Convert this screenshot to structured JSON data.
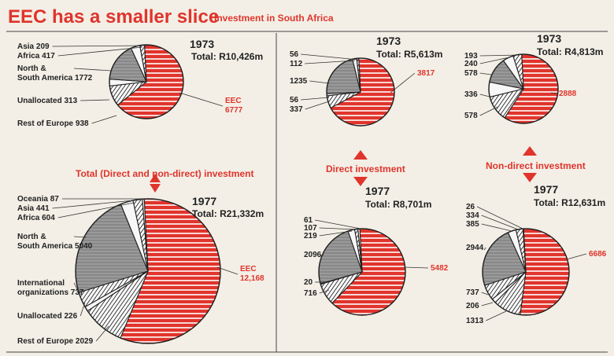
{
  "header": {
    "title": "EEC has a smaller slice",
    "subtitle": "Investment in South Africa"
  },
  "middle_labels": {
    "total": "Total (Direct and non-direct) investment",
    "direct": "Direct investment",
    "nondirect": "Non-direct investment"
  },
  "colors": {
    "eec": "#e0342c",
    "grey": "#9a9a9a",
    "white": "#f7f7f7",
    "ink": "#222222"
  },
  "chart_data": [
    {
      "id": "total-1973",
      "type": "pie",
      "year": "1973",
      "total": "Total: R10,426m",
      "slices": [
        {
          "label": "EEC",
          "value": 6777,
          "value_label": "6777",
          "fill": "red"
        },
        {
          "label": "Rest of Europe",
          "value": 938,
          "value_label": "938",
          "fill": "hatch"
        },
        {
          "label": "Unallocated",
          "value": 313,
          "value_label": "313",
          "fill": "white"
        },
        {
          "label": "North & South America",
          "value": 1772,
          "value_label": "1772",
          "fill": "grey"
        },
        {
          "label": "Africa",
          "value": 417,
          "value_label": "417",
          "fill": "white"
        },
        {
          "label": "Asia",
          "value": 209,
          "value_label": "209",
          "fill": "hatch"
        }
      ]
    },
    {
      "id": "total-1977",
      "type": "pie",
      "year": "1977",
      "total": "Total: R21,332m",
      "slices": [
        {
          "label": "EEC",
          "value": 12168,
          "value_label": "12,168",
          "fill": "red"
        },
        {
          "label": "Rest of Europe",
          "value": 2029,
          "value_label": "2029",
          "fill": "hatch"
        },
        {
          "label": "Unallocated",
          "value": 226,
          "value_label": "226",
          "fill": "white"
        },
        {
          "label": "International organizations",
          "value": 737,
          "value_label": "737",
          "fill": "hatch"
        },
        {
          "label": "North & South America",
          "value": 5040,
          "value_label": "5040",
          "fill": "grey"
        },
        {
          "label": "Africa",
          "value": 604,
          "value_label": "604",
          "fill": "white"
        },
        {
          "label": "Asia",
          "value": 441,
          "value_label": "441",
          "fill": "hatch"
        },
        {
          "label": "Oceania",
          "value": 87,
          "value_label": "87",
          "fill": "white"
        }
      ]
    },
    {
      "id": "direct-1973",
      "type": "pie",
      "year": "1973",
      "total": "Total: R5,613m",
      "slices": [
        {
          "label": "",
          "value": 3817,
          "value_label": "3817",
          "fill": "red"
        },
        {
          "label": "",
          "value": 337,
          "value_label": "337",
          "fill": "hatch"
        },
        {
          "label": "",
          "value": 56,
          "value_label": "56",
          "fill": "white"
        },
        {
          "label": "",
          "value": 1235,
          "value_label": "1235",
          "fill": "grey"
        },
        {
          "label": "",
          "value": 112,
          "value_label": "112",
          "fill": "white"
        },
        {
          "label": "",
          "value": 56,
          "value_label": "56",
          "fill": "hatch"
        }
      ]
    },
    {
      "id": "direct-1977",
      "type": "pie",
      "year": "1977",
      "total": "Total: R8,701m",
      "slices": [
        {
          "label": "",
          "value": 5482,
          "value_label": "5482",
          "fill": "red"
        },
        {
          "label": "",
          "value": 716,
          "value_label": "716",
          "fill": "hatch"
        },
        {
          "label": "",
          "value": 20,
          "value_label": "20",
          "fill": "white"
        },
        {
          "label": "",
          "value": 2096,
          "value_label": "2096",
          "fill": "grey"
        },
        {
          "label": "",
          "value": 219,
          "value_label": "219",
          "fill": "white"
        },
        {
          "label": "",
          "value": 107,
          "value_label": "107",
          "fill": "hatch"
        },
        {
          "label": "",
          "value": 61,
          "value_label": "61",
          "fill": "white"
        }
      ]
    },
    {
      "id": "nondirect-1973",
      "type": "pie",
      "year": "1973",
      "total": "Total: R4,813m",
      "slices": [
        {
          "label": "",
          "value": 2888,
          "value_label": "2888",
          "fill": "red"
        },
        {
          "label": "",
          "value": 578,
          "value_label": "578",
          "fill": "hatch"
        },
        {
          "label": "",
          "value": 336,
          "value_label": "336",
          "fill": "white"
        },
        {
          "label": "",
          "value": 578,
          "value_label": "578",
          "fill": "grey"
        },
        {
          "label": "",
          "value": 240,
          "value_label": "240",
          "fill": "white"
        },
        {
          "label": "",
          "value": 193,
          "value_label": "193",
          "fill": "hatch"
        }
      ]
    },
    {
      "id": "nondirect-1977",
      "type": "pie",
      "year": "1977",
      "total": "Total: R12,631m",
      "slices": [
        {
          "label": "",
          "value": 6686,
          "value_label": "6686",
          "fill": "red"
        },
        {
          "label": "",
          "value": 1313,
          "value_label": "1313",
          "fill": "hatch"
        },
        {
          "label": "",
          "value": 206,
          "value_label": "206",
          "fill": "white"
        },
        {
          "label": "",
          "value": 737,
          "value_label": "737",
          "fill": "hatch"
        },
        {
          "label": "",
          "value": 2944,
          "value_label": "2944",
          "fill": "grey"
        },
        {
          "label": "",
          "value": 385,
          "value_label": "385",
          "fill": "white"
        },
        {
          "label": "",
          "value": 334,
          "value_label": "334",
          "fill": "hatch"
        },
        {
          "label": "",
          "value": 26,
          "value_label": "26",
          "fill": "white"
        }
      ]
    }
  ]
}
